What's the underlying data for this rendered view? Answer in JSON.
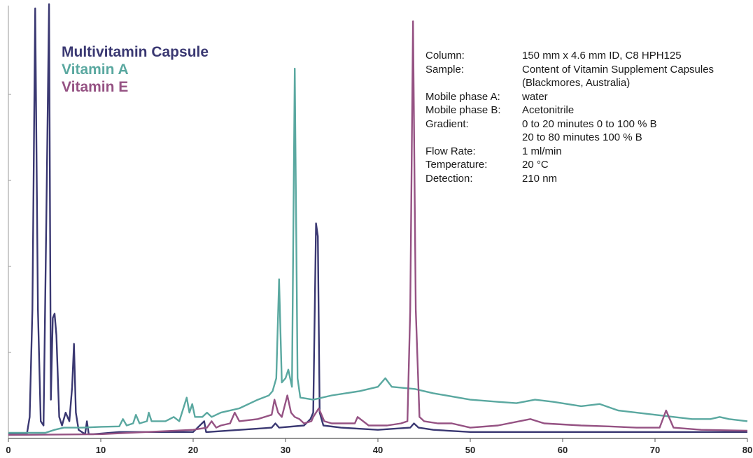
{
  "chart_data": {
    "type": "line",
    "title": "",
    "xlabel": "",
    "ylabel": "",
    "xlim": [
      0,
      80
    ],
    "xticks": [
      0,
      10,
      20,
      30,
      40,
      50,
      60,
      70,
      80
    ],
    "grid": false,
    "legend_position": "top-left",
    "series": [
      {
        "name": "Multivitamin Capsule",
        "color": "#3a3872",
        "x": [
          0,
          2,
          2.3,
          2.6,
          2.9,
          3.2,
          3.5,
          3.8,
          4.1,
          4.4,
          4.6,
          4.8,
          5.0,
          5.2,
          5.5,
          5.8,
          6.2,
          6.6,
          6.9,
          7.1,
          7.3,
          7.6,
          8.3,
          8.5,
          8.7,
          9.2,
          12,
          20,
          21.2,
          21.4,
          21.6,
          28.5,
          28.9,
          29.3,
          32,
          32.7,
          33.0,
          33.3,
          33.5,
          33.7,
          34.1,
          36,
          40,
          43.5,
          43.9,
          44.4,
          46,
          47.5,
          50,
          60,
          70,
          80
        ],
        "y": [
          1,
          1,
          5,
          30,
          100,
          30,
          4,
          3,
          50,
          101,
          9,
          28,
          29,
          24,
          5,
          3,
          6,
          4,
          12,
          22,
          6,
          2,
          1,
          4,
          1,
          1,
          1.5,
          1.5,
          4,
          1.5,
          1.5,
          2.5,
          3.5,
          2.5,
          3,
          4.5,
          6,
          50,
          47,
          6,
          3,
          2.5,
          2,
          2.5,
          3.5,
          2.5,
          2,
          1.8,
          1.5,
          1.5,
          1.5,
          1.5
        ]
      },
      {
        "name": "Vitamin A",
        "color": "#5aa8a0",
        "x": [
          0,
          4,
          5,
          6,
          8,
          10,
          12,
          12.4,
          12.8,
          13.5,
          13.8,
          14.2,
          15,
          15.2,
          15.5,
          17,
          17.9,
          18.5,
          19.3,
          19.6,
          19.9,
          20.2,
          21,
          21.5,
          22,
          23,
          25,
          27,
          28.2,
          28.6,
          29.0,
          29.3,
          29.6,
          30.0,
          30.3,
          30.7,
          31.0,
          31.3,
          31.6,
          33,
          35,
          38,
          40,
          40.8,
          41.5,
          44,
          46,
          50,
          53,
          55,
          57,
          59,
          62,
          64,
          66,
          70,
          74,
          76,
          77,
          78,
          80
        ],
        "y": [
          1.3,
          1.3,
          2,
          2.5,
          2.5,
          2.7,
          2.8,
          4.5,
          3,
          3.5,
          5.5,
          3.5,
          4,
          6,
          4,
          4,
          5,
          4,
          9.5,
          6,
          8,
          5,
          5,
          6,
          5,
          6,
          7,
          9,
          10,
          11,
          14,
          37,
          13,
          14,
          16,
          12,
          86,
          14,
          9.5,
          9,
          10,
          11,
          12,
          14,
          12,
          11.5,
          10.5,
          9,
          8.5,
          8.2,
          9,
          8.5,
          7.5,
          8,
          6.5,
          5.5,
          4.5,
          4.5,
          5,
          4.5,
          4
        ]
      },
      {
        "name": "Vitamin E",
        "color": "#955283",
        "x": [
          0,
          10,
          15,
          20,
          21.5,
          22,
          22.5,
          23,
          24,
          24.5,
          25,
          27,
          28.5,
          28.8,
          29.2,
          29.6,
          30.2,
          30.6,
          31,
          31.5,
          32,
          32.8,
          33,
          33.6,
          34.2,
          35,
          37.5,
          37.8,
          39,
          41,
          42.5,
          43.2,
          43.5,
          43.8,
          44.1,
          44.5,
          45,
          46.5,
          48,
          50,
          53,
          56.5,
          58,
          62,
          65,
          68,
          70.5,
          71.2,
          72,
          75,
          80
        ],
        "y": [
          0.8,
          1,
          1.5,
          2,
          2.5,
          4,
          2.5,
          3,
          3.5,
          6,
          4,
          4.5,
          5.5,
          9,
          6,
          5,
          10,
          6,
          5,
          4.5,
          3.5,
          4,
          5,
          7,
          4,
          3.5,
          3.5,
          5,
          3,
          3,
          3.5,
          4,
          30,
          97,
          30,
          5,
          4,
          3.5,
          3.5,
          2.5,
          3,
          4.5,
          3.5,
          3,
          2.8,
          2.5,
          2.5,
          6.5,
          2.5,
          2,
          1.8
        ]
      }
    ]
  },
  "info": {
    "rows": [
      {
        "k": "Column:",
        "v": "150 mm x 4.6 mm ID, C8 HPH125"
      },
      {
        "k": "Sample:",
        "v": "Content of Vitamin Supplement Capsules"
      },
      {
        "k": "",
        "v": "(Blackmores, Australia)"
      },
      {
        "k": "Mobile phase A:",
        "v": "water"
      },
      {
        "k": "Mobile phase B:",
        "v": "Acetonitrile"
      },
      {
        "k": "Gradient:",
        "v": "0 to 20 minutes 0 to 100 % B"
      },
      {
        "k": "",
        "v": "20 to 80 minutes 100 % B"
      },
      {
        "k": "Flow Rate:",
        "v": "1 ml/min"
      },
      {
        "k": "Temperature:",
        "v": "20 °C"
      },
      {
        "k": "Detection:",
        "v": "210 nm"
      }
    ]
  }
}
